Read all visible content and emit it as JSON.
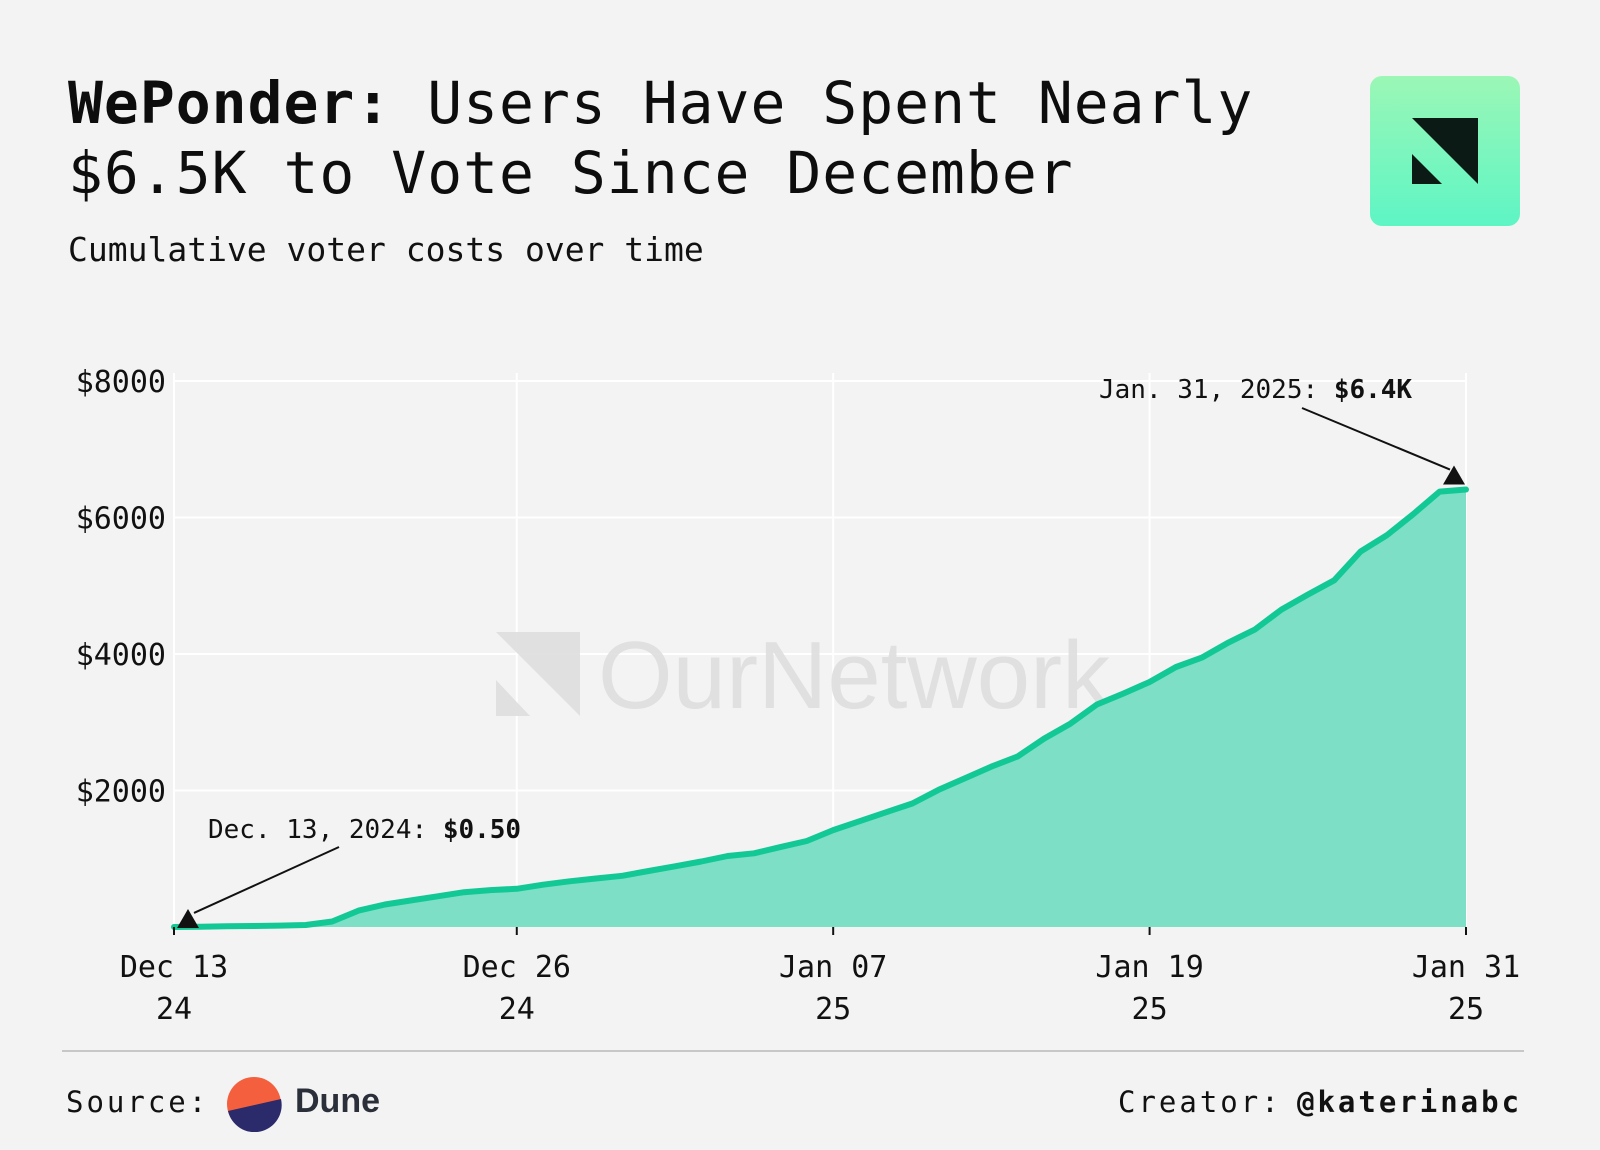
{
  "header": {
    "title_bold": "WePonder:",
    "title_rest": " Users Have Spent Nearly $6.5K to Vote Since December",
    "subtitle": "Cumulative voter costs over time"
  },
  "colors": {
    "line": "#12c996",
    "area": "#7ddfc6",
    "grid": "#ffffff",
    "background": "#f3f3f3",
    "logo_gradient": [
      "#9bf7b6",
      "#5ef5c5"
    ]
  },
  "watermark": "OurNetwork",
  "footer": {
    "source_label": "Source:",
    "source_name": "Dune",
    "source_icon": "dune-logo-icon",
    "creator_label": "Creator:",
    "creator_handle": "@katerinabc"
  },
  "chart_data": {
    "type": "area",
    "title": "",
    "xlabel": "",
    "ylabel": "",
    "x_start": "2024-12-13",
    "x": [
      "2024-12-13",
      "2024-12-14",
      "2024-12-15",
      "2024-12-16",
      "2024-12-17",
      "2024-12-18",
      "2024-12-19",
      "2024-12-20",
      "2024-12-21",
      "2024-12-22",
      "2024-12-23",
      "2024-12-24",
      "2024-12-25",
      "2024-12-26",
      "2024-12-27",
      "2024-12-28",
      "2024-12-29",
      "2024-12-30",
      "2024-12-31",
      "2025-01-01",
      "2025-01-02",
      "2025-01-03",
      "2025-01-04",
      "2025-01-05",
      "2025-01-06",
      "2025-01-07",
      "2025-01-08",
      "2025-01-09",
      "2025-01-10",
      "2025-01-11",
      "2025-01-12",
      "2025-01-13",
      "2025-01-14",
      "2025-01-15",
      "2025-01-16",
      "2025-01-17",
      "2025-01-18",
      "2025-01-19",
      "2025-01-20",
      "2025-01-21",
      "2025-01-22",
      "2025-01-23",
      "2025-01-24",
      "2025-01-25",
      "2025-01-26",
      "2025-01-27",
      "2025-01-28",
      "2025-01-29",
      "2025-01-30",
      "2025-01-31"
    ],
    "series": [
      {
        "values": [
          0.5,
          5,
          10,
          15,
          20,
          30,
          80,
          240,
          330,
          390,
          450,
          510,
          540,
          560,
          620,
          670,
          710,
          750,
          820,
          890,
          960,
          1040,
          1080,
          1170,
          1260,
          1420,
          1550,
          1680,
          1810,
          2010,
          2180,
          2350,
          2500,
          2760,
          2980,
          3260,
          3420,
          3590,
          3810,
          3950,
          4170,
          4360,
          4650,
          4870,
          5080,
          5500,
          5740,
          6050,
          6380,
          6410
        ]
      }
    ],
    "ylim": [
      0,
      8000
    ],
    "yticks": [
      {
        "value": 2000,
        "label": "$2000"
      },
      {
        "value": 4000,
        "label": "$4000"
      },
      {
        "value": 6000,
        "label": "$6000"
      },
      {
        "value": 8000,
        "label": "$8000"
      }
    ],
    "xticks": [
      {
        "date": "2024-12-13",
        "line1": "Dec 13",
        "line2": "24"
      },
      {
        "date": "2024-12-26",
        "line1": "Dec 26",
        "line2": "24"
      },
      {
        "date": "2025-01-07",
        "line1": "Jan 07",
        "line2": "25"
      },
      {
        "date": "2025-01-19",
        "line1": "Jan 19",
        "line2": "25"
      },
      {
        "date": "2025-01-31",
        "line1": "Jan 31",
        "line2": "25"
      }
    ],
    "grid": true,
    "annotations": [
      {
        "date": "2024-12-13",
        "value": 0.5,
        "label": "Dec. 13, 2024:",
        "value_label": "$0.50"
      },
      {
        "date": "2025-01-31",
        "value": 6410,
        "label": "Jan. 31, 2025:",
        "value_label": "$6.4K"
      }
    ]
  }
}
